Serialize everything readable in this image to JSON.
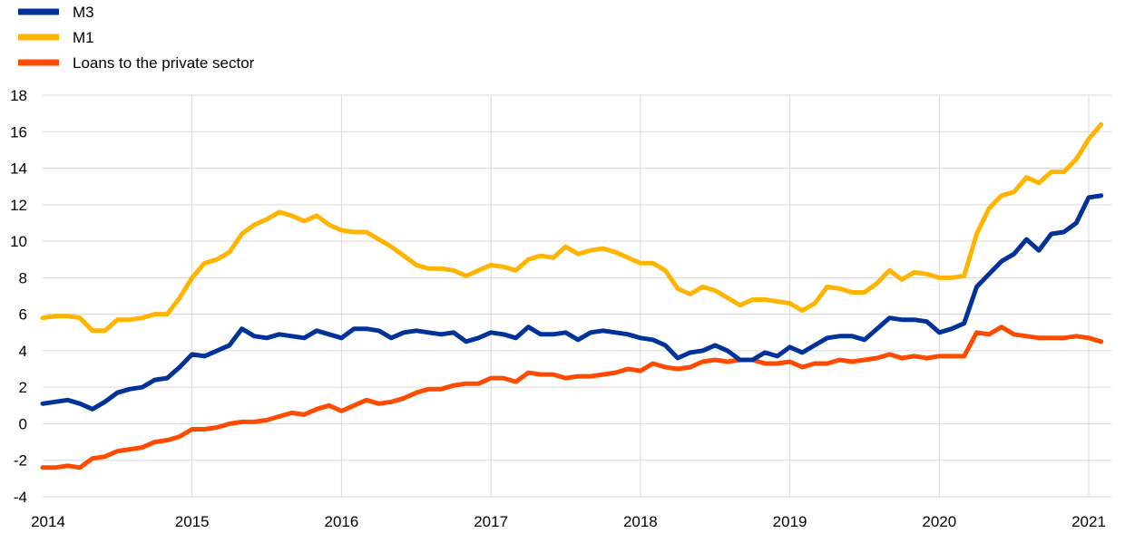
{
  "chart_data": {
    "type": "line",
    "title": "",
    "xlabel": "",
    "ylabel": "",
    "ylim": [
      -4,
      18
    ],
    "yticks": [
      -4,
      -2,
      0,
      2,
      4,
      6,
      8,
      10,
      12,
      14,
      16,
      18
    ],
    "xticks": [
      "2014",
      "2015",
      "2016",
      "2017",
      "2018",
      "2019",
      "2020",
      "2021"
    ],
    "x_start": "2014-01",
    "x_frequency": "monthly",
    "grid": true,
    "legend_position": "top-left",
    "series": [
      {
        "name": "M3",
        "color": "#003299",
        "values": [
          1.1,
          1.2,
          1.3,
          1.1,
          0.8,
          1.2,
          1.7,
          1.9,
          2.0,
          2.4,
          2.5,
          3.1,
          3.8,
          3.7,
          4.0,
          4.3,
          5.2,
          4.8,
          4.7,
          4.9,
          4.8,
          4.7,
          5.1,
          4.9,
          4.7,
          5.2,
          5.2,
          5.1,
          4.7,
          5.0,
          5.1,
          5.0,
          4.9,
          5.0,
          4.5,
          4.7,
          5.0,
          4.9,
          4.7,
          5.3,
          4.9,
          4.9,
          5.0,
          4.6,
          5.0,
          5.1,
          5.0,
          4.9,
          4.7,
          4.6,
          4.3,
          3.6,
          3.9,
          4.0,
          4.3,
          4.0,
          3.5,
          3.5,
          3.9,
          3.7,
          4.2,
          3.9,
          4.3,
          4.7,
          4.8,
          4.8,
          4.6,
          5.2,
          5.8,
          5.7,
          5.7,
          5.6,
          5.0,
          5.2,
          5.5,
          7.5,
          8.2,
          8.9,
          9.3,
          10.1,
          9.5,
          10.4,
          10.5,
          11.0,
          12.4,
          12.5
        ]
      },
      {
        "name": "M1",
        "color": "#FFB400",
        "values": [
          5.8,
          5.9,
          5.9,
          5.8,
          5.1,
          5.1,
          5.7,
          5.7,
          5.8,
          6.0,
          6.0,
          6.9,
          8.0,
          8.8,
          9.0,
          9.4,
          10.4,
          10.9,
          11.2,
          11.6,
          11.4,
          11.1,
          11.4,
          10.9,
          10.6,
          10.5,
          10.5,
          10.1,
          9.7,
          9.2,
          8.7,
          8.5,
          8.5,
          8.4,
          8.1,
          8.4,
          8.7,
          8.6,
          8.4,
          9.0,
          9.2,
          9.1,
          9.7,
          9.3,
          9.5,
          9.6,
          9.4,
          9.1,
          8.8,
          8.8,
          8.4,
          7.4,
          7.1,
          7.5,
          7.3,
          6.9,
          6.5,
          6.8,
          6.8,
          6.7,
          6.6,
          6.2,
          6.6,
          7.5,
          7.4,
          7.2,
          7.2,
          7.7,
          8.4,
          7.9,
          8.3,
          8.2,
          8.0,
          8.0,
          8.1,
          10.4,
          11.8,
          12.5,
          12.7,
          13.5,
          13.2,
          13.8,
          13.8,
          14.5,
          15.6,
          16.4
        ]
      },
      {
        "name": "Loans to the private sector",
        "color": "#FF4B00",
        "values": [
          -2.4,
          -2.4,
          -2.3,
          -2.4,
          -1.9,
          -1.8,
          -1.5,
          -1.4,
          -1.3,
          -1.0,
          -0.9,
          -0.7,
          -0.3,
          -0.3,
          -0.2,
          0.0,
          0.1,
          0.1,
          0.2,
          0.4,
          0.6,
          0.5,
          0.8,
          1.0,
          0.7,
          1.0,
          1.3,
          1.1,
          1.2,
          1.4,
          1.7,
          1.9,
          1.9,
          2.1,
          2.2,
          2.2,
          2.5,
          2.5,
          2.3,
          2.8,
          2.7,
          2.7,
          2.5,
          2.6,
          2.6,
          2.7,
          2.8,
          3.0,
          2.9,
          3.3,
          3.1,
          3.0,
          3.1,
          3.4,
          3.5,
          3.4,
          3.5,
          3.5,
          3.3,
          3.3,
          3.4,
          3.1,
          3.3,
          3.3,
          3.5,
          3.4,
          3.5,
          3.6,
          3.8,
          3.6,
          3.7,
          3.6,
          3.7,
          3.7,
          3.7,
          5.0,
          4.9,
          5.3,
          4.9,
          4.8,
          4.7,
          4.7,
          4.7,
          4.8,
          4.7,
          4.5
        ]
      }
    ]
  }
}
